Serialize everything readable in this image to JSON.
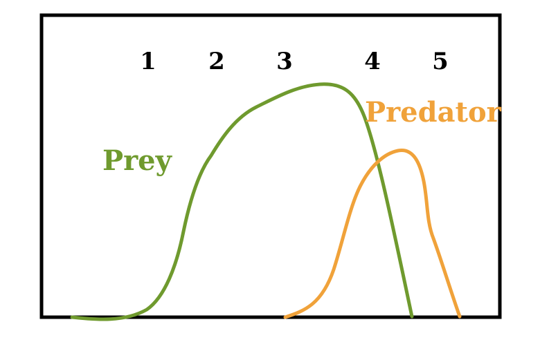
{
  "stage_labels": [
    "1",
    "2",
    "3",
    "4",
    "5"
  ],
  "prey": {
    "label": "Prey",
    "color": "#6f9a2e"
  },
  "predator": {
    "label": "Predator",
    "color": "#f0a23a"
  },
  "frame_color": "#000000",
  "label_color": "#000000"
}
